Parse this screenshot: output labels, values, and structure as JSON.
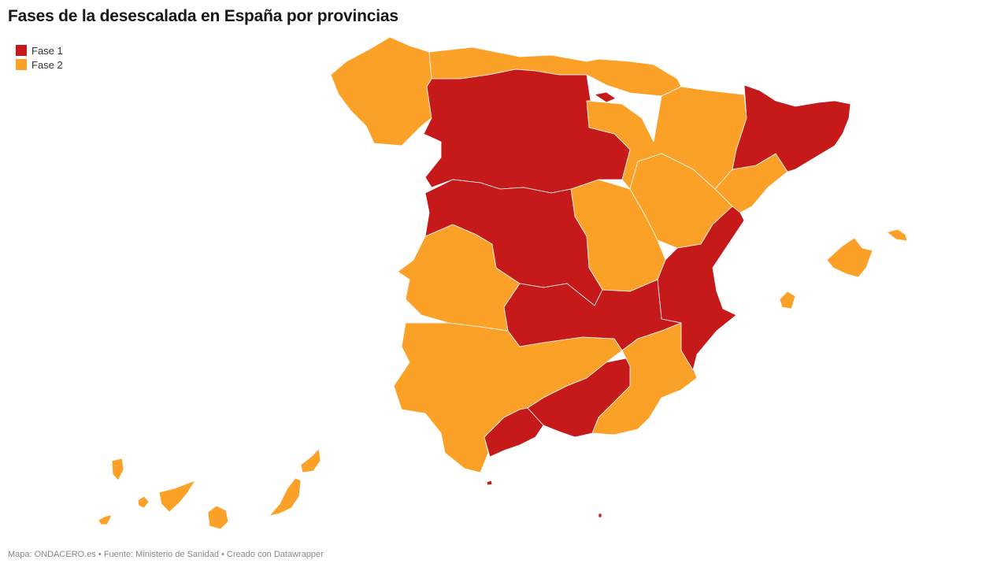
{
  "title": "Fases de la desescalada en España por provincias",
  "legend": {
    "items": [
      {
        "label": "Fase 1",
        "color": "#c61a1a"
      },
      {
        "label": "Fase 2",
        "color": "#fca128"
      }
    ]
  },
  "footer": "Mapa: ONDACERO.es • Fuente: Ministerio de Sanidad • Creado con Datawrapper"
}
